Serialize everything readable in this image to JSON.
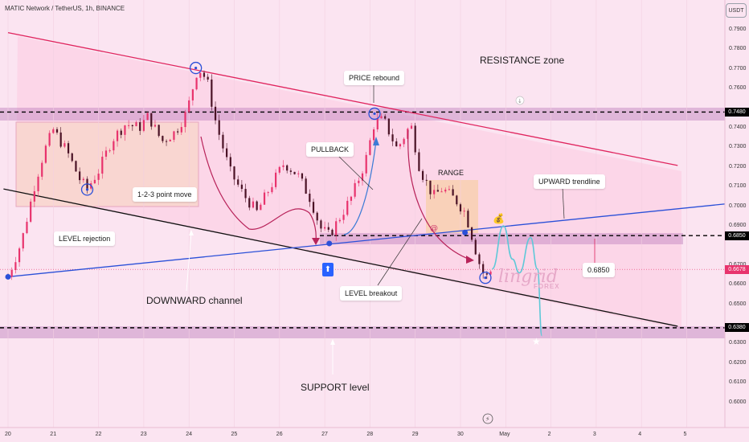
{
  "header": {
    "symbol_line": "MATIC Network / TetherUS, 1h, BINANCE",
    "currency_badge": "USDT"
  },
  "colors": {
    "background": "#fbe4f1",
    "resistance_line": "#e0245e",
    "support_trend_line": "#111111",
    "upward_trendline": "#2b50d8",
    "candle_up": "#e8336d",
    "candle_down": "#4a1225",
    "level_band": "#c88fc4",
    "zone_fill": "#fcd6e4",
    "range_fill": "#f8d2b4",
    "projection": "#5ec8d8",
    "circle_marker": "#2b50d8"
  },
  "annotations": {
    "resistance_zone": "RESISTANCE zone",
    "price_rebound": "PRICE rebound",
    "pullback": "PULLBACK",
    "range": "RANGE",
    "upward_trendline": "UPWARD trendline",
    "point_move": "1-2-3 point move",
    "level_rejection": "LEVEL rejection",
    "downward_channel": "DOWNWARD channel",
    "level_breakout": "LEVEL breakout",
    "support_level": "SUPPORT level",
    "target_value": "0.6850"
  },
  "watermark": {
    "brand": "lingrid",
    "sub": "FOREX"
  },
  "icons": [
    "up-arrow-icon",
    "dollar-bag-icon",
    "snail-icon",
    "star-icon",
    "flash-icon",
    "download-icon"
  ],
  "chart_data": {
    "type": "candlestick",
    "title": "MATIC Network / TetherUS, 1h, BINANCE",
    "y_unit": "USDT",
    "ylim": [
      0.595,
      0.8
    ],
    "y_ticks": [
      "0.7900",
      "0.7800",
      "0.7700",
      "0.7600",
      "0.7480",
      "0.7400",
      "0.7300",
      "0.7200",
      "0.7100",
      "0.7000",
      "0.6900",
      "0.6850",
      "0.6700",
      "0.6678",
      "0.6600",
      "0.6500",
      "0.6380",
      "0.6300",
      "0.6200",
      "0.6100",
      "0.6000"
    ],
    "x_ticks": [
      "20",
      "21",
      "22",
      "23",
      "24",
      "25",
      "26",
      "27",
      "28",
      "29",
      "30",
      "May",
      "2",
      "3",
      "4",
      "5"
    ],
    "x_range": [
      20,
      36
    ],
    "price_levels": [
      {
        "name": "resistance_level",
        "value": 0.748,
        "color": "#000000"
      },
      {
        "name": "breakout_level",
        "value": 0.685,
        "color": "#000000"
      },
      {
        "name": "support_level",
        "value": 0.638,
        "color": "#000000"
      },
      {
        "name": "current_price",
        "value": 0.6678,
        "color": "#e8336d"
      }
    ],
    "price_path": [
      [
        20.0,
        0.664
      ],
      [
        20.3,
        0.682
      ],
      [
        20.6,
        0.712
      ],
      [
        20.8,
        0.728
      ],
      [
        21.0,
        0.739
      ],
      [
        21.3,
        0.728
      ],
      [
        21.6,
        0.713
      ],
      [
        21.75,
        0.709
      ],
      [
        22.0,
        0.718
      ],
      [
        22.3,
        0.734
      ],
      [
        22.6,
        0.742
      ],
      [
        22.9,
        0.74
      ],
      [
        23.1,
        0.746
      ],
      [
        23.4,
        0.733
      ],
      [
        23.7,
        0.738
      ],
      [
        23.95,
        0.748
      ],
      [
        24.1,
        0.762
      ],
      [
        24.2,
        0.771
      ],
      [
        24.4,
        0.764
      ],
      [
        24.6,
        0.742
      ],
      [
        24.9,
        0.718
      ],
      [
        25.2,
        0.706
      ],
      [
        25.5,
        0.697
      ],
      [
        25.8,
        0.71
      ],
      [
        26.1,
        0.722
      ],
      [
        26.4,
        0.716
      ],
      [
        26.7,
        0.703
      ],
      [
        26.9,
        0.689
      ],
      [
        27.1,
        0.685
      ],
      [
        27.3,
        0.693
      ],
      [
        27.6,
        0.705
      ],
      [
        27.9,
        0.723
      ],
      [
        28.1,
        0.743
      ],
      [
        28.3,
        0.744
      ],
      [
        28.6,
        0.729
      ],
      [
        28.9,
        0.742
      ],
      [
        29.1,
        0.719
      ],
      [
        29.4,
        0.705
      ],
      [
        29.6,
        0.709
      ],
      [
        29.9,
        0.703
      ],
      [
        30.1,
        0.697
      ],
      [
        30.25,
        0.685
      ],
      [
        30.4,
        0.672
      ],
      [
        30.55,
        0.663
      ],
      [
        30.7,
        0.668
      ]
    ],
    "lines": [
      {
        "name": "resistance_trendline",
        "from": [
          20.0,
          0.7885
        ],
        "to": [
          34.8,
          0.7208
        ]
      },
      {
        "name": "channel_support_trendline",
        "from": [
          19.9,
          0.7088
        ],
        "to": [
          34.8,
          0.6388
        ]
      },
      {
        "name": "upward_trendline",
        "from": [
          20.0,
          0.664
        ],
        "to": [
          36.0,
          0.7015
        ]
      }
    ],
    "projection_path": [
      [
        30.7,
        0.668
      ],
      [
        30.95,
        0.69
      ],
      [
        31.15,
        0.673
      ],
      [
        31.3,
        0.666
      ],
      [
        31.55,
        0.684
      ],
      [
        31.7,
        0.668
      ],
      [
        31.8,
        0.634
      ]
    ]
  }
}
